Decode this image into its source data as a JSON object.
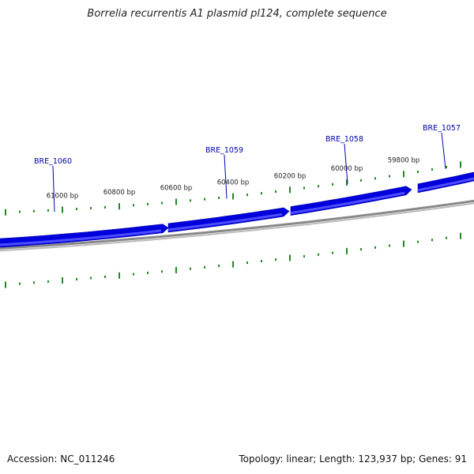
{
  "title": "Borrelia recurrentis A1 plasmid pl124, complete sequence",
  "footer": {
    "accession": "Accession: NC_011246",
    "stats": "Topology: linear; Length: 123,937 bp; Genes: 91"
  },
  "colors": {
    "gene_fill": "#0000dd",
    "gene_light": "#4d4dff",
    "gene_label": "#0000aa",
    "backbone": "#888888",
    "tick": "#228822"
  },
  "scale": {
    "major_step_bp": 200,
    "minor_per_major": 4,
    "direction": "reverse"
  },
  "ticks": [
    {
      "bp": 61000,
      "label": "61000 bp"
    },
    {
      "bp": 60800,
      "label": "60800 bp"
    },
    {
      "bp": 60600,
      "label": "60600 bp"
    },
    {
      "bp": 60400,
      "label": "60400 bp"
    },
    {
      "bp": 60200,
      "label": "60200 bp"
    },
    {
      "bp": 60000,
      "label": "60000 bp"
    },
    {
      "bp": 59800,
      "label": "59800 bp"
    }
  ],
  "genes": [
    {
      "name": "BRE_1060"
    },
    {
      "name": "BRE_1059"
    },
    {
      "name": "BRE_1058"
    },
    {
      "name": "BRE_1057"
    }
  ]
}
